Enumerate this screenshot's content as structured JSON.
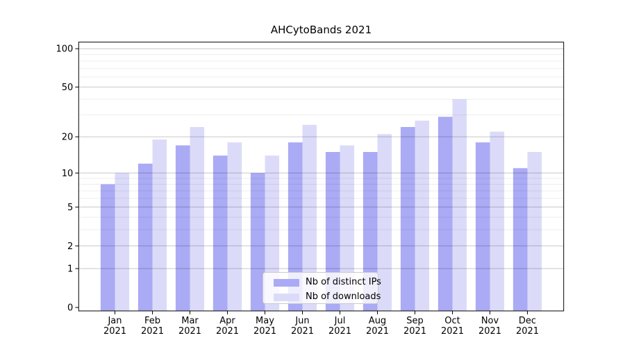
{
  "chart_data": {
    "type": "bar",
    "title": "AHCytoBands 2021",
    "categories": [
      "Jan",
      "Feb",
      "Mar",
      "Apr",
      "May",
      "Jun",
      "Jul",
      "Aug",
      "Sep",
      "Oct",
      "Nov",
      "Dec"
    ],
    "category_year": "2021",
    "series": [
      {
        "name": "Nb of distinct IPs",
        "color": "#aaaaf5",
        "values": [
          8,
          12,
          17,
          14,
          10,
          18,
          15,
          15,
          24,
          29,
          18,
          11
        ]
      },
      {
        "name": "Nb of downloads",
        "color": "#dbdbf9",
        "values": [
          10,
          19,
          24,
          18,
          14,
          25,
          17,
          21,
          27,
          40,
          22,
          15
        ]
      }
    ],
    "y_axis": {
      "scale": "log10(value+1)",
      "major_ticks": [
        0,
        1,
        2,
        5,
        10,
        20,
        50,
        100
      ],
      "minor_gridlines": [
        3,
        4,
        6,
        7,
        8,
        9,
        30,
        40,
        60,
        70,
        80,
        90
      ],
      "range_top": 100
    },
    "x_axis": {
      "tick_label_lines": 2
    },
    "legend": {
      "position": "bottom-center"
    },
    "grid": true
  },
  "colors": {
    "ips_bar": "#aaaaf5",
    "downloads_bar": "#dbdbf9",
    "axis": "#000000",
    "grid_major": "rgba(0,0,0,0.22)",
    "grid_minor": "rgba(0,0,0,0.07)",
    "background": "#ffffff"
  }
}
